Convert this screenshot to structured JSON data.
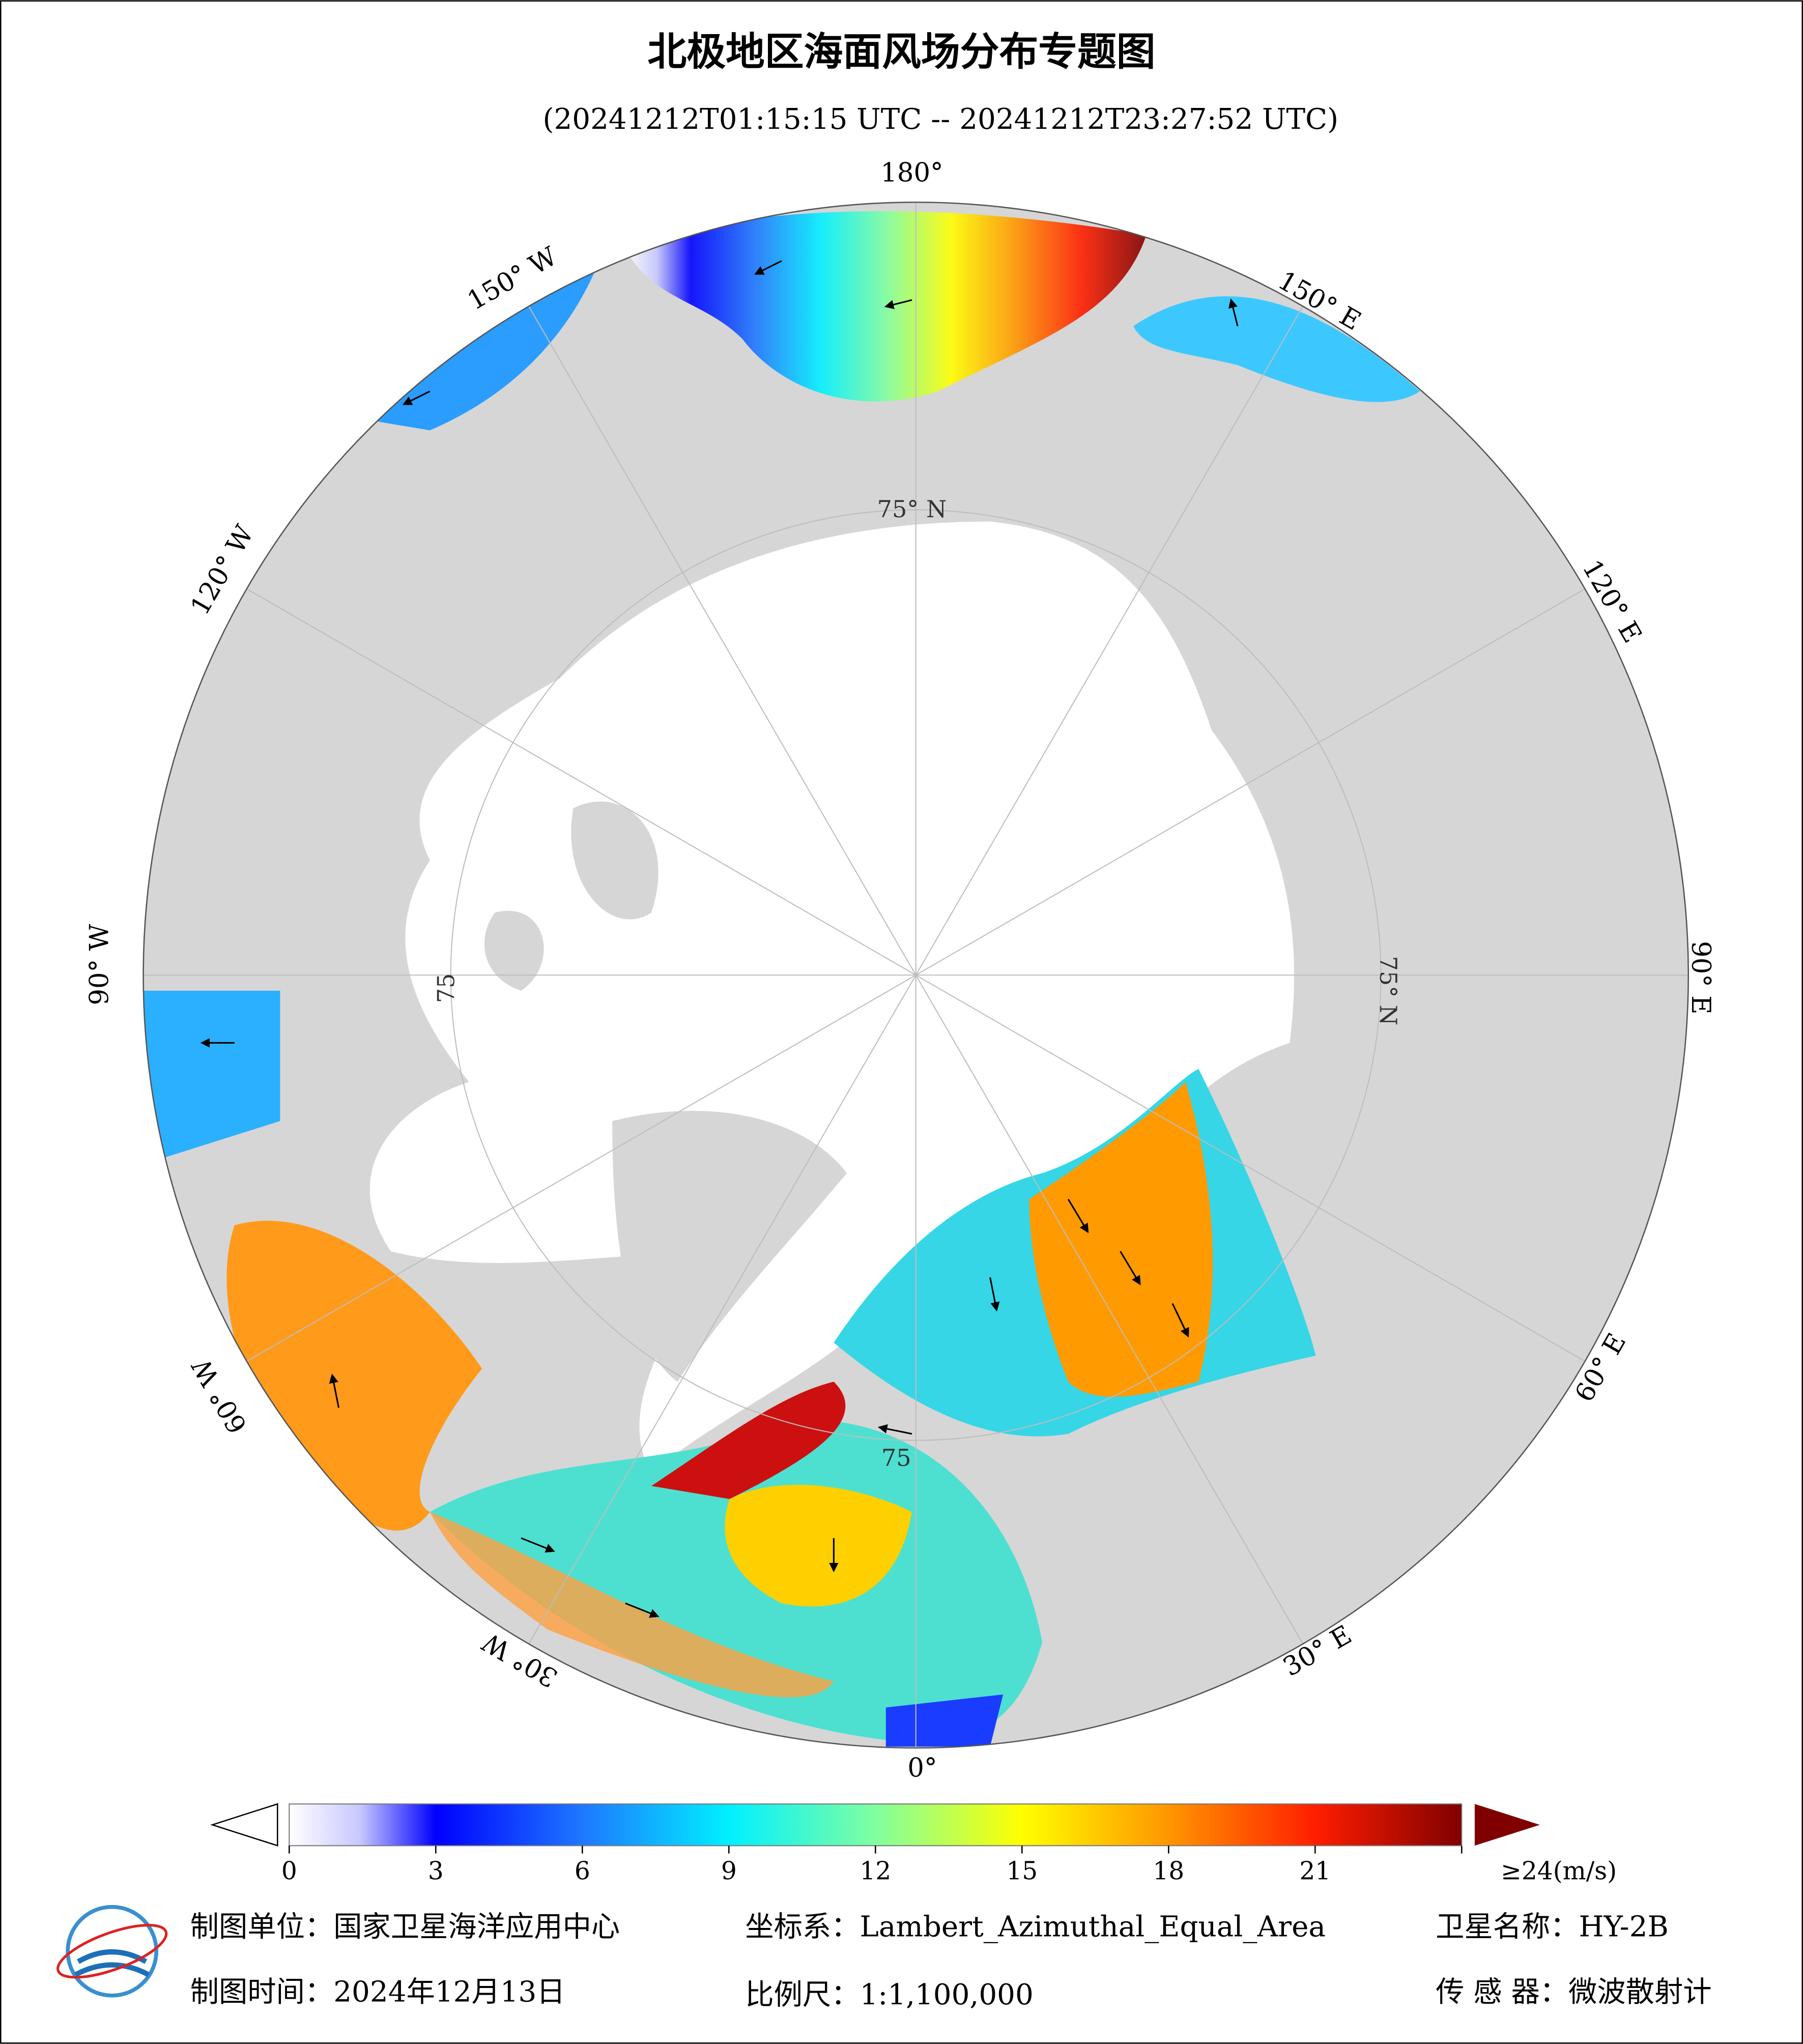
{
  "title": "北极地区海面风场分布专题图",
  "subtitle": "(20241212T01:15:15 UTC -- 20241212T23:27:52 UTC)",
  "map": {
    "longitude_labels": [
      "180°",
      "150° E",
      "120° E",
      "90° E",
      "60° E",
      "30° E",
      "0°",
      "30° W",
      "60° W",
      "90° W",
      "120° W",
      "150° W"
    ],
    "latitude_labels": [
      "75° N",
      "75° N",
      "75",
      "75"
    ]
  },
  "colorbar": {
    "lim": [
      0,
      24
    ],
    "ticks": [
      0,
      3,
      6,
      9,
      12,
      15,
      18,
      21,
      {
        "value": 24,
        "label": "≥24(m/s)"
      }
    ]
  },
  "footer": {
    "unit": "制图单位：国家卫星海洋应用中心",
    "crs": "坐标系：Lambert_Azimuthal_Equal_Area",
    "satellite": "卫星名称：HY-2B",
    "date": "制图时间：2024年12月13日",
    "scale": "比例尺：1:1,100,000",
    "sensor": "传 感 器：微波散射计"
  }
}
